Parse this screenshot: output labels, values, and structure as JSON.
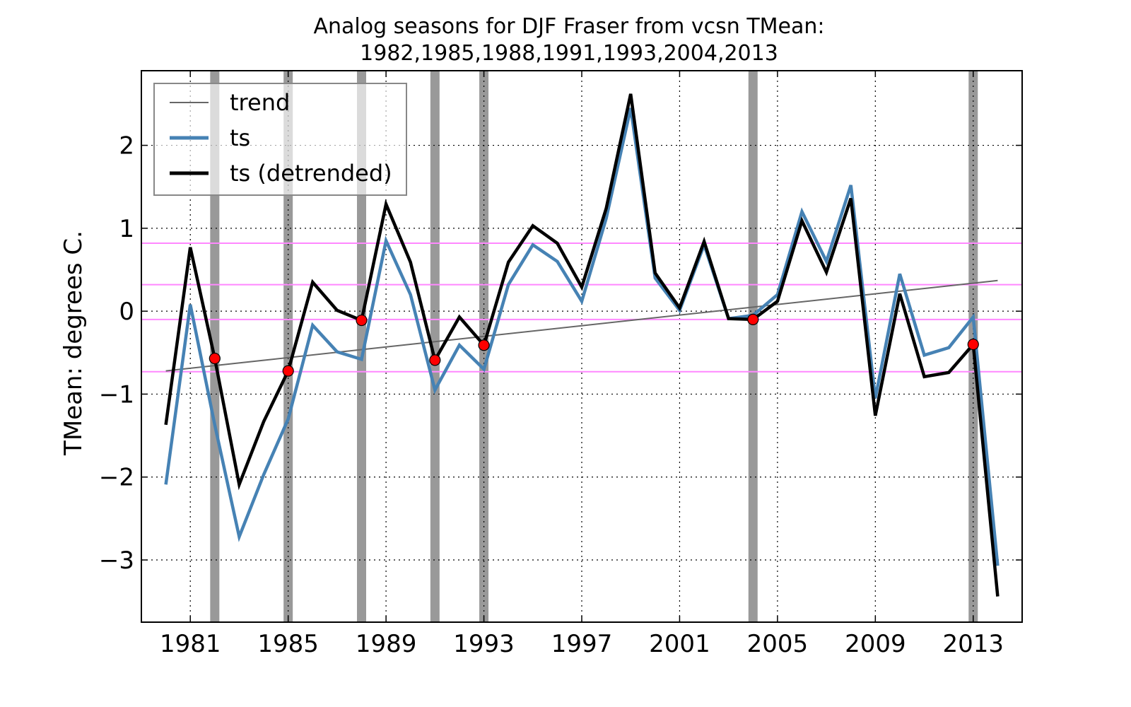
{
  "chart_data": {
    "type": "line",
    "title_line1": "Analog seasons for DJF Fraser from vcsn TMean:",
    "title_line2": "1982,1985,1988,1991,1993,2004,2013",
    "xlabel": "",
    "ylabel": "TMean: degrees C.",
    "xlim": [
      1979.0,
      2015.0
    ],
    "ylim": [
      -3.75,
      2.9
    ],
    "x_ticks": [
      1981,
      1985,
      1989,
      1993,
      1997,
      2001,
      2005,
      2009,
      2013
    ],
    "x_tick_labels": [
      "1981",
      "1985",
      "1989",
      "1993",
      "1997",
      "2001",
      "2005",
      "2009",
      "2013"
    ],
    "y_ticks": [
      -3,
      -2,
      -1,
      0,
      1,
      2
    ],
    "y_tick_labels": [
      "−3",
      "−2",
      "−1",
      "0",
      "1",
      "2"
    ],
    "grid": true,
    "legend_position": "top-left",
    "legend": [
      "trend",
      "ts",
      "ts (detrended)"
    ],
    "years": [
      1980,
      1981,
      1982,
      1983,
      1984,
      1985,
      1986,
      1987,
      1988,
      1989,
      1990,
      1991,
      1992,
      1993,
      1994,
      1995,
      1996,
      1997,
      1998,
      1999,
      2000,
      2001,
      2002,
      2003,
      2004,
      2005,
      2006,
      2007,
      2008,
      2009,
      2010,
      2011,
      2012,
      2013,
      2014
    ],
    "series": [
      {
        "name": "trend",
        "color": "#666666",
        "x": [
          1980,
          2014
        ],
        "values": [
          -0.72,
          0.37
        ]
      },
      {
        "name": "ts",
        "color": "#4682b4",
        "values": [
          -2.09,
          0.08,
          -1.37,
          -2.72,
          -1.97,
          -1.3,
          -0.17,
          -0.49,
          -0.58,
          0.85,
          0.2,
          -0.95,
          -0.41,
          -0.7,
          0.32,
          0.8,
          0.6,
          0.12,
          1.12,
          2.45,
          0.4,
          0.01,
          0.8,
          -0.09,
          -0.05,
          0.2,
          1.2,
          0.6,
          1.52,
          -1.05,
          0.45,
          -0.53,
          -0.44,
          -0.07,
          -3.07
        ]
      },
      {
        "name": "ts (detrended)",
        "color": "#000000",
        "values": [
          -1.37,
          0.77,
          -0.57,
          -2.09,
          -1.33,
          -0.72,
          0.35,
          0.01,
          -0.11,
          1.29,
          0.59,
          -0.59,
          -0.07,
          -0.41,
          0.59,
          1.03,
          0.82,
          0.29,
          1.24,
          2.62,
          0.46,
          0.04,
          0.84,
          -0.09,
          -0.1,
          0.12,
          1.09,
          0.47,
          1.36,
          -1.26,
          0.21,
          -0.79,
          -0.74,
          -0.4,
          -3.44
        ]
      }
    ],
    "analog_years": [
      1982,
      1985,
      1988,
      1991,
      1993,
      2004,
      2013
    ],
    "analog_values": [
      -0.57,
      -0.72,
      -0.11,
      -0.59,
      -0.41,
      -0.1,
      -0.4
    ],
    "reference_lines": [
      0.82,
      0.32,
      -0.1,
      -0.73
    ],
    "colors": {
      "shade": "#999999",
      "shade_light": "#c8c8c8",
      "reference": "#ff88ff",
      "marker_fill": "#ff0000",
      "grid": "#000000"
    }
  }
}
